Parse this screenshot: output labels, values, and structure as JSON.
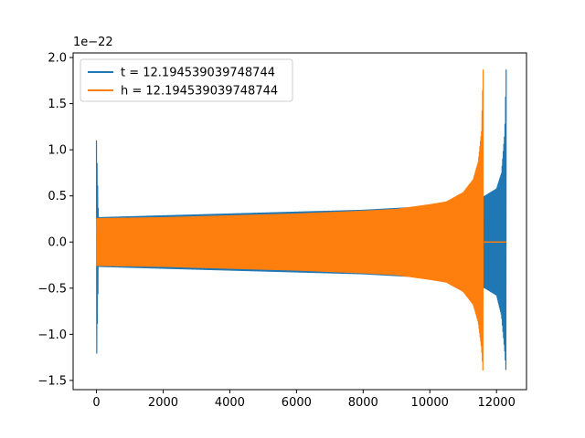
{
  "chart_data": {
    "type": "line",
    "title": "",
    "xlabel": "",
    "ylabel": "",
    "offset_text": "1e−22",
    "xlim": [
      -700,
      12900
    ],
    "ylim": [
      -1.6,
      2.05
    ],
    "x_ticks": [
      {
        "value": 0,
        "label": "0"
      },
      {
        "value": 2000,
        "label": "2000"
      },
      {
        "value": 4000,
        "label": "4000"
      },
      {
        "value": 6000,
        "label": "6000"
      },
      {
        "value": 8000,
        "label": "8000"
      },
      {
        "value": 10000,
        "label": "10000"
      },
      {
        "value": 12000,
        "label": "12000"
      }
    ],
    "y_ticks": [
      {
        "value": -1.5,
        "label": "−1.5"
      },
      {
        "value": -1.0,
        "label": "−1.0"
      },
      {
        "value": -0.5,
        "label": "−0.5"
      },
      {
        "value": 0.0,
        "label": "0.0"
      },
      {
        "value": 0.5,
        "label": "0.5"
      },
      {
        "value": 1.0,
        "label": "1.0"
      },
      {
        "value": 1.5,
        "label": "1.5"
      },
      {
        "value": 2.0,
        "label": "2.0"
      }
    ],
    "legend_position": "upper-left",
    "series": [
      {
        "name": "t = 12.194539039748744",
        "color": "#1f77b4",
        "envelope": {
          "x": [
            0,
            60,
            2000,
            4000,
            6000,
            8000,
            10000,
            11000,
            11620,
            11640,
            12000,
            12150,
            12250,
            12290
          ],
          "upper": [
            1.1,
            0.27,
            0.29,
            0.31,
            0.33,
            0.35,
            0.39,
            0.43,
            0.5,
            0.5,
            0.58,
            0.75,
            1.2,
            1.87
          ],
          "lower": [
            -1.37,
            -0.27,
            -0.29,
            -0.31,
            -0.33,
            -0.35,
            -0.39,
            -0.43,
            -0.5,
            -0.5,
            -0.58,
            -0.8,
            -1.2,
            -1.44
          ]
        }
      },
      {
        "name": "h = 12.194539039748744",
        "color": "#ff7f0e",
        "envelope": {
          "x": [
            0,
            2000,
            4000,
            6000,
            8000,
            9000,
            10000,
            10500,
            11000,
            11300,
            11450,
            11550,
            11600
          ],
          "upper": [
            0.26,
            0.27,
            0.29,
            0.31,
            0.34,
            0.36,
            0.41,
            0.44,
            0.54,
            0.68,
            0.87,
            1.2,
            1.87
          ],
          "lower": [
            -0.26,
            -0.27,
            -0.29,
            -0.31,
            -0.34,
            -0.36,
            -0.41,
            -0.44,
            -0.54,
            -0.68,
            -0.87,
            -1.15,
            -1.44
          ]
        },
        "flat_tail": {
          "x": [
            11620,
            12290
          ],
          "y": 0.0
        }
      }
    ]
  }
}
